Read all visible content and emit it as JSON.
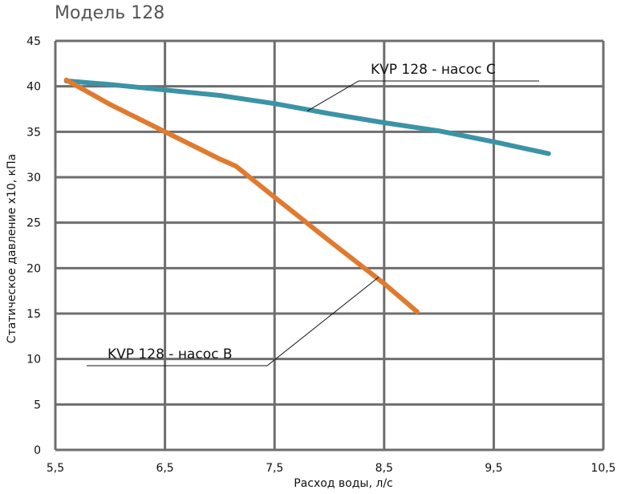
{
  "chart_data": {
    "type": "line",
    "title": "Модель 128",
    "xlabel": "Расход воды, л/с",
    "ylabel": "Статическое давление x10, кПа",
    "xlim": [
      5.5,
      10.5
    ],
    "ylim": [
      0,
      45
    ],
    "x_ticks": [
      "5,5",
      "6,5",
      "7,5",
      "8,5",
      "9,5",
      "10,5"
    ],
    "y_ticks": [
      "0",
      "5",
      "10",
      "15",
      "20",
      "25",
      "30",
      "35",
      "40",
      "45"
    ],
    "grid": true,
    "series": [
      {
        "name": "KVP 128 - насос С",
        "color": "#3b93a6",
        "x": [
          5.6,
          6.0,
          6.5,
          7.0,
          7.5,
          8.0,
          8.5,
          9.0,
          9.5,
          10.0
        ],
        "y": [
          40.6,
          40.2,
          39.6,
          39.0,
          38.1,
          37.0,
          36.0,
          35.1,
          33.9,
          32.6
        ]
      },
      {
        "name": "KVP 128 - насос В",
        "color": "#e07a2e",
        "x": [
          5.6,
          6.0,
          6.5,
          7.0,
          7.15,
          7.5,
          8.0,
          8.5,
          8.8
        ],
        "y": [
          40.7,
          38.0,
          35.0,
          32.0,
          31.2,
          27.8,
          23.0,
          18.3,
          15.2
        ]
      }
    ]
  }
}
